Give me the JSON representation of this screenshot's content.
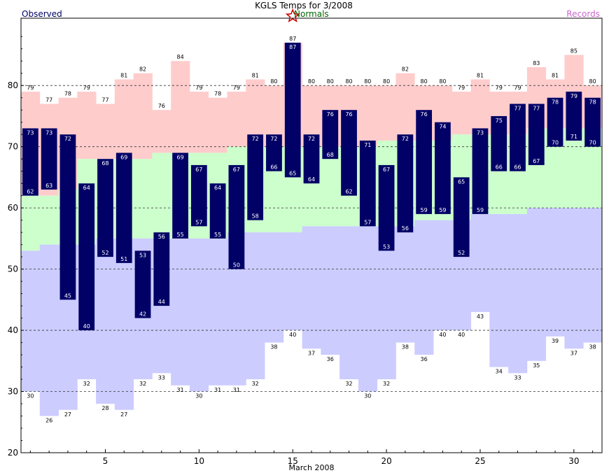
{
  "chart_data": {
    "type": "bar",
    "title": "KGLS Temps for 3/2008",
    "xlabel": "March 2008",
    "ylabel": "",
    "ylim": [
      20,
      91
    ],
    "xlim": [
      0.5,
      31.5
    ],
    "yticks": [
      20,
      30,
      40,
      50,
      60,
      70,
      80
    ],
    "xticks": [
      5,
      10,
      15,
      20,
      25,
      30
    ],
    "grid": "dashed horizontal",
    "legend": {
      "observed": "Observed",
      "normals": "Normals",
      "records": "Records"
    },
    "days": [
      1,
      2,
      3,
      4,
      5,
      6,
      7,
      8,
      9,
      10,
      11,
      12,
      13,
      14,
      15,
      16,
      17,
      18,
      19,
      20,
      21,
      22,
      23,
      24,
      25,
      26,
      27,
      28,
      29,
      30,
      31
    ],
    "observed_high": [
      73,
      73,
      72,
      64,
      68,
      69,
      53,
      56,
      69,
      67,
      64,
      67,
      72,
      72,
      87,
      72,
      76,
      76,
      71,
      67,
      72,
      76,
      74,
      65,
      73,
      75,
      77,
      77,
      78,
      79,
      78
    ],
    "observed_low": [
      62,
      63,
      45,
      40,
      52,
      51,
      42,
      44,
      55,
      57,
      55,
      50,
      58,
      66,
      65,
      64,
      68,
      62,
      57,
      53,
      56,
      59,
      59,
      52,
      59,
      66,
      66,
      67,
      70,
      71,
      70
    ],
    "normal_high": [
      62,
      62,
      63,
      68,
      68,
      68,
      68,
      69,
      69,
      69,
      69,
      70,
      70,
      70,
      70,
      70,
      70,
      70,
      70,
      71,
      71,
      71,
      71,
      72,
      72,
      72,
      72,
      73,
      73,
      73,
      73
    ],
    "normal_low": [
      53,
      54,
      54,
      54,
      55,
      55,
      55,
      55,
      55,
      55,
      55,
      56,
      56,
      56,
      56,
      57,
      57,
      57,
      57,
      57,
      57,
      58,
      58,
      58,
      59,
      59,
      59,
      60,
      60,
      60,
      60
    ],
    "record_high": [
      79,
      77,
      78,
      79,
      77,
      81,
      82,
      76,
      84,
      79,
      78,
      79,
      81,
      80,
      87,
      80,
      80,
      80,
      80,
      80,
      82,
      80,
      80,
      79,
      81,
      79,
      79,
      83,
      81,
      85,
      80
    ],
    "record_low": [
      30,
      26,
      27,
      32,
      28,
      27,
      32,
      33,
      31,
      30,
      31,
      31,
      32,
      38,
      40,
      37,
      36,
      32,
      30,
      32,
      38,
      36,
      40,
      40,
      43,
      34,
      33,
      35,
      39,
      37,
      38
    ],
    "marker_day": 15,
    "colors": {
      "observed": "#000066",
      "normals": "#ccffcc",
      "records_high": "#ffcccc",
      "records_low": "#ccccff",
      "legend_observed": "#000066",
      "legend_normals": "#006600",
      "legend_records": "#cc66cc",
      "marker": "#cc0000",
      "grid": "#333333"
    }
  }
}
